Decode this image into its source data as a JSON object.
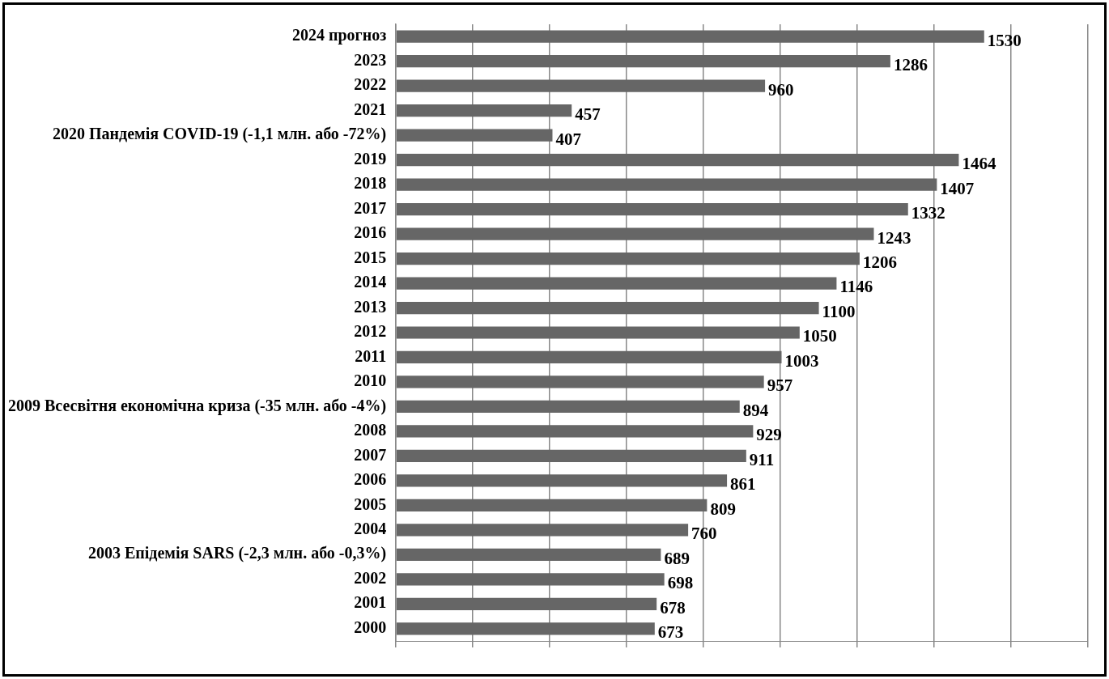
{
  "chart_data": {
    "type": "bar",
    "orientation": "horizontal",
    "categories": [
      "2024 прогноз",
      "2023",
      "2022",
      "2021",
      "2020 Пандемія COVID-19 (-1,1 млн. або -72%)",
      "2019",
      "2018",
      "2017",
      "2016",
      "2015",
      "2014",
      "2013",
      "2012",
      "2011",
      "2010",
      "2009 Всесвітня економічна криза (-35 млн. або -4%)",
      "2008",
      "2007",
      "2006",
      "2005",
      "2004",
      "2003 Епідемія SARS (-2,3 млн. або -0,3%)",
      "2002",
      "2001",
      "2000"
    ],
    "values": [
      1530,
      1286,
      960,
      457,
      407,
      1464,
      1407,
      1332,
      1243,
      1206,
      1146,
      1100,
      1050,
      1003,
      957,
      894,
      929,
      911,
      861,
      809,
      760,
      689,
      698,
      678,
      673
    ],
    "color": "#666666",
    "xlim": [
      0,
      1800
    ],
    "xticks": [
      {
        "value": 0,
        "label": null
      },
      {
        "value": 200,
        "label": null
      },
      {
        "value": 400,
        "label": null
      },
      {
        "value": 600,
        "label": null
      },
      {
        "value": 800,
        "label": null
      },
      {
        "value": 1000,
        "label": null
      },
      {
        "value": 1200,
        "label": null
      },
      {
        "value": 1400,
        "label": null
      },
      {
        "value": 1600,
        "label": null
      },
      {
        "value": 1800,
        "label": null
      }
    ],
    "grid": "x",
    "tick_labels": "y",
    "data_labels": true
  }
}
